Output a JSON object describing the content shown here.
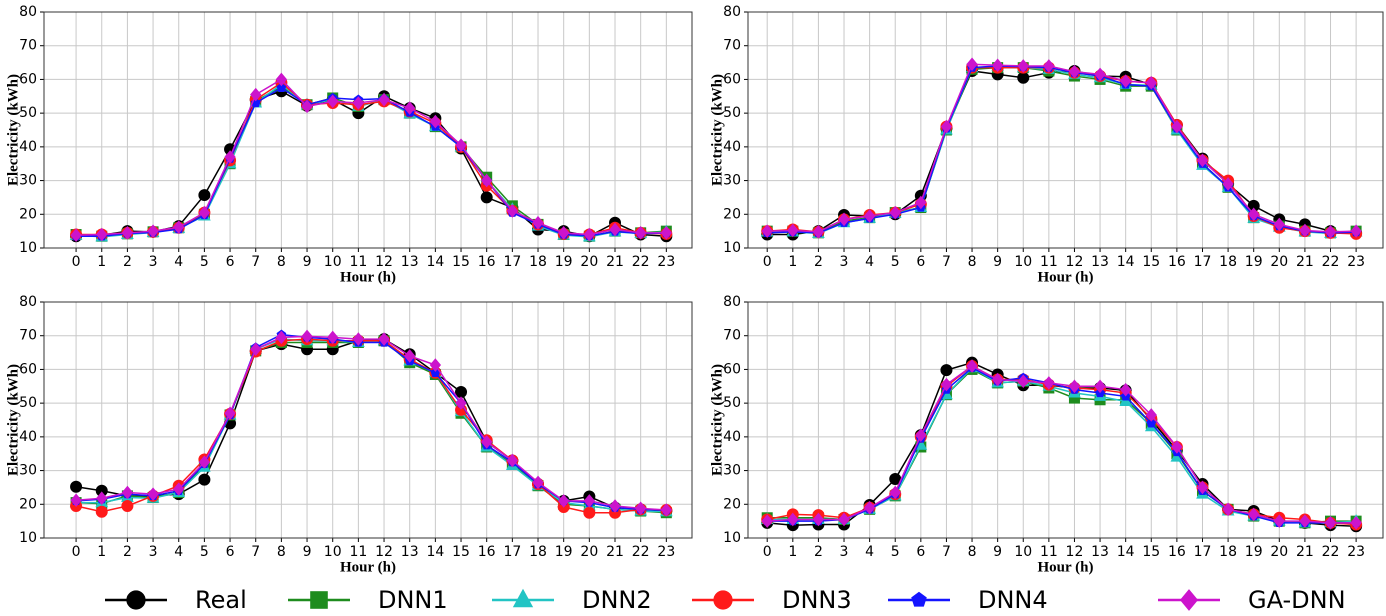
{
  "chart_data": [
    {
      "type": "line",
      "xlabel": "Hour (h)",
      "ylabel": "Electricity (kWh)",
      "grid": true,
      "legend": "bottom",
      "x": [
        0,
        1,
        2,
        3,
        4,
        5,
        6,
        7,
        8,
        9,
        10,
        11,
        12,
        13,
        14,
        15,
        16,
        17,
        18,
        19,
        20,
        21,
        22,
        23
      ],
      "xticks": [
        0,
        1,
        2,
        3,
        4,
        5,
        6,
        7,
        8,
        9,
        10,
        11,
        12,
        13,
        14,
        15,
        16,
        17,
        18,
        19,
        20,
        21,
        22,
        23
      ],
      "xlim": [
        -1.25,
        24
      ],
      "ylim": [
        10,
        80
      ],
      "yticks": [
        10,
        20,
        30,
        40,
        50,
        60,
        70,
        80
      ],
      "series": [
        {
          "name": "Real",
          "color": "#000000",
          "marker": "circle",
          "values": [
            13.5,
            13.8,
            15,
            14.8,
            16.5,
            25.7,
            39.3,
            54,
            56.5,
            52.2,
            54,
            50,
            55,
            51.5,
            48.5,
            39.5,
            25,
            22,
            15.5,
            15,
            13.5,
            17.5,
            14,
            13.5
          ]
        },
        {
          "name": "DNN1",
          "color": "#1e8c1e",
          "marker": "square",
          "values": [
            14,
            13.5,
            14.2,
            14.8,
            16,
            20,
            35,
            53.5,
            58,
            52.5,
            54.5,
            52,
            54,
            50,
            46,
            40,
            31,
            22.5,
            17,
            14,
            13.5,
            15,
            14.5,
            15
          ]
        },
        {
          "name": "DNN2",
          "color": "#22c4c4",
          "marker": "triangle",
          "values": [
            13.8,
            13.3,
            14,
            14.6,
            15.8,
            19.5,
            35,
            53,
            58.5,
            52.5,
            54,
            52,
            54,
            49.8,
            46,
            40,
            30,
            21.5,
            16.5,
            13.8,
            13.3,
            14.8,
            14.3,
            14.8
          ]
        },
        {
          "name": "DNN3",
          "color": "#ff1a1a",
          "marker": "circle",
          "values": [
            14,
            14,
            14.5,
            14.8,
            16,
            20.5,
            36,
            54,
            59,
            52.5,
            53,
            52.5,
            53.5,
            50.5,
            47,
            40,
            28.5,
            21,
            17,
            14.2,
            14,
            16,
            14.5,
            14.2
          ]
        },
        {
          "name": "DNN4",
          "color": "#1414ff",
          "marker": "pentagon",
          "values": [
            13.5,
            13.5,
            14.3,
            14.6,
            15.6,
            19.8,
            36.5,
            53,
            57.5,
            52.5,
            54.5,
            54,
            54.3,
            50.2,
            46,
            40,
            30,
            20.5,
            17,
            14,
            13.6,
            14.9,
            14.3,
            14.4
          ]
        },
        {
          "name": "GA-DNN",
          "color": "#cc14cc",
          "marker": "diamond",
          "values": [
            13.8,
            14,
            14.5,
            15,
            16.2,
            20.5,
            37,
            55.5,
            60,
            52,
            53.5,
            53,
            54,
            51.5,
            47.5,
            40.5,
            30,
            21,
            17.5,
            14.5,
            14,
            15.5,
            14.5,
            14.5
          ]
        }
      ]
    },
    {
      "type": "line",
      "xlabel": "Hour (h)",
      "ylabel": "Electricity (kWh)",
      "grid": true,
      "x": [
        0,
        1,
        2,
        3,
        4,
        5,
        6,
        7,
        8,
        9,
        10,
        11,
        12,
        13,
        14,
        15,
        16,
        17,
        18,
        19,
        20,
        21,
        22,
        23
      ],
      "xticks": [
        0,
        1,
        2,
        3,
        4,
        5,
        6,
        7,
        8,
        9,
        10,
        11,
        12,
        13,
        14,
        15,
        16,
        17,
        18,
        19,
        20,
        21,
        22,
        23
      ],
      "xlim": [
        -0.75,
        24.05
      ],
      "ylim": [
        10,
        80
      ],
      "yticks": [
        10,
        20,
        30,
        40,
        50,
        60,
        70,
        80
      ],
      "series": [
        {
          "name": "Real",
          "color": "#000000",
          "marker": "circle",
          "values": [
            14,
            14,
            15,
            19.8,
            19.5,
            20,
            25.5,
            45.5,
            62.5,
            61.5,
            60.5,
            62,
            62.5,
            61,
            60.8,
            58.5,
            46.5,
            36.5,
            29,
            22.5,
            18.5,
            17,
            15,
            14.5
          ]
        },
        {
          "name": "DNN1",
          "color": "#1e8c1e",
          "marker": "square",
          "values": [
            15,
            15,
            14.5,
            18,
            19,
            20.5,
            22,
            45,
            63,
            63.5,
            63.5,
            62.5,
            61,
            60,
            58,
            58,
            45,
            35,
            28,
            19,
            16.5,
            15,
            14.5,
            15
          ]
        },
        {
          "name": "DNN2",
          "color": "#22c4c4",
          "marker": "triangle",
          "values": [
            14.8,
            14.8,
            14.3,
            17.5,
            18.8,
            20.3,
            22,
            45,
            63.5,
            63.8,
            63.5,
            63,
            61.5,
            60.5,
            58.5,
            58.3,
            45,
            34.5,
            28,
            18.8,
            16.2,
            14.8,
            14.3,
            14.8
          ]
        },
        {
          "name": "DNN3",
          "color": "#ff1a1a",
          "marker": "circle",
          "values": [
            15,
            15.5,
            14.8,
            18.5,
            19.8,
            20.5,
            23,
            46,
            63.5,
            63.5,
            63.5,
            63.5,
            62,
            61,
            59.5,
            59,
            46.5,
            36,
            30,
            19.5,
            16,
            15,
            14.5,
            14.2
          ]
        },
        {
          "name": "DNN4",
          "color": "#1414ff",
          "marker": "pentagon",
          "values": [
            14.5,
            14.8,
            14.5,
            17.5,
            18.8,
            20,
            22,
            45.5,
            63.5,
            64,
            63.8,
            63.5,
            62,
            61,
            58.5,
            58,
            45.5,
            35,
            28,
            19.5,
            16.5,
            15,
            14.5,
            14.7
          ]
        },
        {
          "name": "GA-DNN",
          "color": "#cc14cc",
          "marker": "diamond",
          "values": [
            15,
            15.2,
            14.8,
            18.5,
            19.5,
            20.5,
            23.5,
            46,
            64.5,
            64.2,
            64,
            64,
            62.3,
            61.5,
            59.5,
            59,
            46,
            36,
            29,
            20,
            17,
            15.2,
            14.8,
            15
          ]
        }
      ]
    },
    {
      "type": "line",
      "xlabel": "Hour (h)",
      "ylabel": "Electricity (kWh)",
      "grid": true,
      "x": [
        0,
        1,
        2,
        3,
        4,
        5,
        6,
        7,
        8,
        9,
        10,
        11,
        12,
        13,
        14,
        15,
        16,
        17,
        18,
        19,
        20,
        21,
        22,
        23
      ],
      "xticks": [
        0,
        1,
        2,
        3,
        4,
        5,
        6,
        7,
        8,
        9,
        10,
        11,
        12,
        13,
        14,
        15,
        16,
        17,
        18,
        19,
        20,
        21,
        22,
        23
      ],
      "xlim": [
        -1.25,
        24
      ],
      "ylim": [
        10,
        80
      ],
      "yticks": [
        10,
        20,
        30,
        40,
        50,
        60,
        70,
        80
      ],
      "series": [
        {
          "name": "Real",
          "color": "#000000",
          "marker": "circle",
          "values": [
            25.2,
            24,
            22.5,
            22.5,
            23,
            27.3,
            44,
            65.5,
            67.5,
            66,
            66,
            68.5,
            69,
            64.5,
            59,
            53.3,
            38.5,
            33,
            26,
            21,
            22.3,
            19,
            18.5,
            18
          ]
        },
        {
          "name": "DNN1",
          "color": "#1e8c1e",
          "marker": "square",
          "values": [
            20.5,
            20.2,
            22.5,
            22,
            23.5,
            31.5,
            46.5,
            65.5,
            68,
            68,
            68,
            68,
            68.5,
            62,
            58.5,
            47,
            37,
            32,
            25.5,
            20,
            19.5,
            18.5,
            18,
            17.5
          ]
        },
        {
          "name": "DNN2",
          "color": "#22c4c4",
          "marker": "triangle",
          "values": [
            20.5,
            20.5,
            22,
            21.8,
            23.5,
            31,
            46.5,
            66,
            69,
            68.5,
            68.5,
            68,
            68.5,
            62.5,
            59,
            47.5,
            37,
            31.5,
            25.5,
            20.5,
            19.5,
            18.5,
            18,
            17.8
          ]
        },
        {
          "name": "DNN3",
          "color": "#ff1a1a",
          "marker": "circle",
          "values": [
            19.5,
            17.8,
            19.5,
            22.5,
            25.5,
            33.3,
            46.8,
            65.3,
            68.5,
            69,
            68.5,
            68.5,
            68.5,
            63,
            59,
            48,
            39,
            33,
            26,
            19.2,
            17.5,
            17.5,
            18.5,
            18.3
          ]
        },
        {
          "name": "DNN4",
          "color": "#1414ff",
          "marker": "pentagon",
          "values": [
            21,
            21.5,
            23,
            22.5,
            24,
            32,
            46.5,
            66.5,
            70.3,
            69.5,
            69,
            68,
            68,
            62.5,
            59,
            50,
            37.5,
            32.5,
            26,
            21,
            20.5,
            19,
            18.5,
            18.2
          ]
        },
        {
          "name": "GA-DNN",
          "color": "#cc14cc",
          "marker": "diamond",
          "values": [
            21.2,
            21.8,
            23.5,
            23,
            24.5,
            32.5,
            47,
            66,
            69.5,
            69.8,
            69.5,
            69,
            69,
            64,
            61.3,
            50,
            38.5,
            33,
            26.5,
            21,
            21,
            19.5,
            18.8,
            18.3
          ]
        }
      ]
    },
    {
      "type": "line",
      "xlabel": "Hour (h)",
      "ylabel": "Electricity (kWh)",
      "grid": true,
      "x": [
        0,
        1,
        2,
        3,
        4,
        5,
        6,
        7,
        8,
        9,
        10,
        11,
        12,
        13,
        14,
        15,
        16,
        17,
        18,
        19,
        20,
        21,
        22,
        23
      ],
      "xticks": [
        0,
        1,
        2,
        3,
        4,
        5,
        6,
        7,
        8,
        9,
        10,
        11,
        12,
        13,
        14,
        15,
        16,
        17,
        18,
        19,
        20,
        21,
        22,
        23
      ],
      "xlim": [
        -0.75,
        24.05
      ],
      "ylim": [
        10,
        80
      ],
      "yticks": [
        10,
        20,
        30,
        40,
        50,
        60,
        70,
        80
      ],
      "series": [
        {
          "name": "Real",
          "color": "#000000",
          "marker": "circle",
          "values": [
            14.5,
            13.8,
            14,
            14,
            19.8,
            27.5,
            40.5,
            59.8,
            62,
            58.5,
            55.3,
            55.3,
            54.5,
            54.5,
            53.8,
            45,
            36,
            26,
            18.5,
            18,
            15,
            14.5,
            13.8,
            13.5
          ]
        },
        {
          "name": "DNN1",
          "color": "#1e8c1e",
          "marker": "square",
          "values": [
            16,
            16,
            16,
            15.5,
            18.5,
            22.5,
            37,
            52.5,
            60,
            56,
            56.5,
            54.5,
            51.5,
            51,
            51,
            44,
            35,
            24,
            18.5,
            16.5,
            15,
            14.5,
            15,
            15
          ]
        },
        {
          "name": "DNN2",
          "color": "#22c4c4",
          "marker": "triangle",
          "values": [
            15.5,
            15.5,
            15.5,
            15.5,
            18.5,
            22.5,
            37.5,
            52.5,
            60.5,
            56,
            56.5,
            55,
            53,
            52,
            50.5,
            43,
            34,
            23,
            18,
            16.5,
            15,
            14.5,
            14.5,
            15
          ]
        },
        {
          "name": "DNN3",
          "color": "#ff1a1a",
          "marker": "circle",
          "values": [
            15.5,
            17,
            16.8,
            16,
            19,
            23,
            40,
            55,
            61,
            57,
            57,
            55.5,
            54.5,
            54,
            53,
            45.5,
            37,
            25,
            18.5,
            17,
            16,
            15.5,
            14.5,
            14
          ]
        },
        {
          "name": "DNN4",
          "color": "#1414ff",
          "marker": "pentagon",
          "values": [
            15,
            15,
            15,
            15.5,
            18.5,
            23,
            39.5,
            54,
            60.5,
            56.5,
            57.5,
            56,
            54,
            53,
            52,
            44,
            35.5,
            24,
            18.5,
            16.5,
            14.5,
            14.5,
            14.5,
            14.5
          ]
        },
        {
          "name": "GA-DNN",
          "color": "#cc14cc",
          "marker": "diamond",
          "values": [
            15,
            15.5,
            15.5,
            15.5,
            19,
            23.5,
            40.5,
            55.5,
            61,
            57,
            56.5,
            56,
            55,
            55,
            54,
            46.5,
            37,
            25,
            18.5,
            17,
            15,
            15,
            14.5,
            14.5
          ]
        }
      ]
    }
  ]
}
